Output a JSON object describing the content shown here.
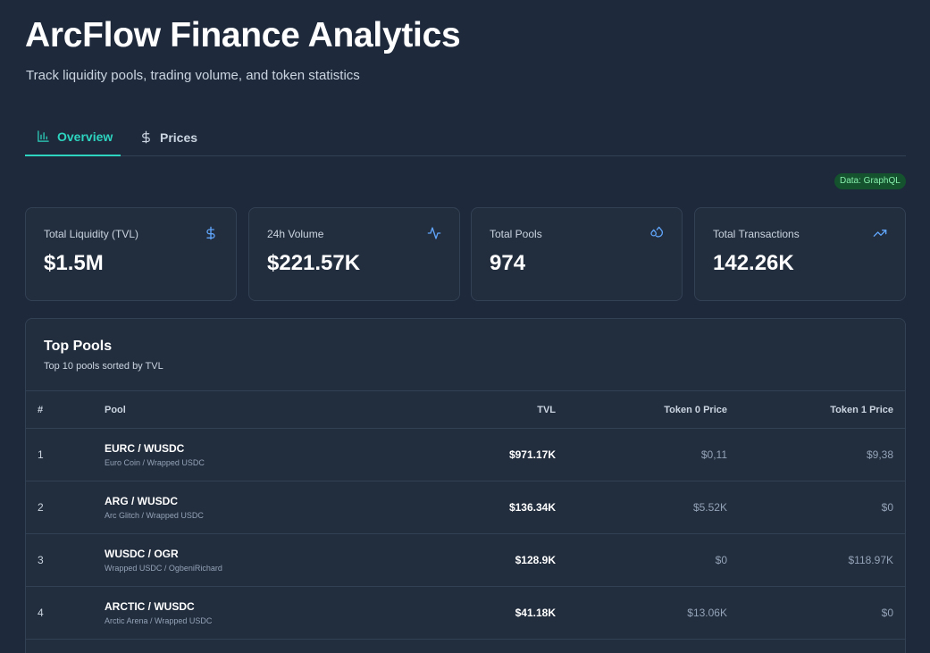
{
  "header": {
    "title": "ArcFlow Finance Analytics",
    "subtitle": "Track liquidity pools, trading volume, and token statistics"
  },
  "tabs": [
    {
      "label": "Overview",
      "icon": "bar-chart-icon",
      "active": true
    },
    {
      "label": "Prices",
      "icon": "dollar-icon",
      "active": false
    }
  ],
  "badge": {
    "label": "Data: GraphQL"
  },
  "stats": [
    {
      "label": "Total Liquidity (TVL)",
      "value": "$1.5M",
      "icon": "dollar-icon"
    },
    {
      "label": "24h Volume",
      "value": "$221.57K",
      "icon": "activity-icon"
    },
    {
      "label": "Total Pools",
      "value": "974",
      "icon": "droplets-icon"
    },
    {
      "label": "Total Transactions",
      "value": "142.26K",
      "icon": "trending-up-icon"
    }
  ],
  "pools": {
    "title": "Top Pools",
    "subtitle": "Top 10 pools sorted by TVL",
    "columns": [
      "#",
      "Pool",
      "TVL",
      "Token 0 Price",
      "Token 1 Price"
    ],
    "rows": [
      {
        "rank": "1",
        "pair": "EURC / WUSDC",
        "names": "Euro Coin / Wrapped USDC",
        "tvl": "$971.17K",
        "token0_price": "$0,11",
        "token1_price": "$9,38"
      },
      {
        "rank": "2",
        "pair": "ARG / WUSDC",
        "names": "Arc Glitch / Wrapped USDC",
        "tvl": "$136.34K",
        "token0_price": "$5.52K",
        "token1_price": "$0"
      },
      {
        "rank": "3",
        "pair": "WUSDC / OGR",
        "names": "Wrapped USDC / OgbeniRichard",
        "tvl": "$128.9K",
        "token0_price": "$0",
        "token1_price": "$118.97K"
      },
      {
        "rank": "4",
        "pair": "ARCTIC / WUSDC",
        "names": "Arctic Arena / Wrapped USDC",
        "tvl": "$41.18K",
        "token0_price": "$13.06K",
        "token1_price": "$0"
      }
    ]
  },
  "colors": {
    "background": "#1e293b",
    "card": "#222d3d",
    "accent": "#2dd4bf",
    "icon": "#60a5fa",
    "badge_bg": "#14532d",
    "badge_text": "#86efac"
  }
}
